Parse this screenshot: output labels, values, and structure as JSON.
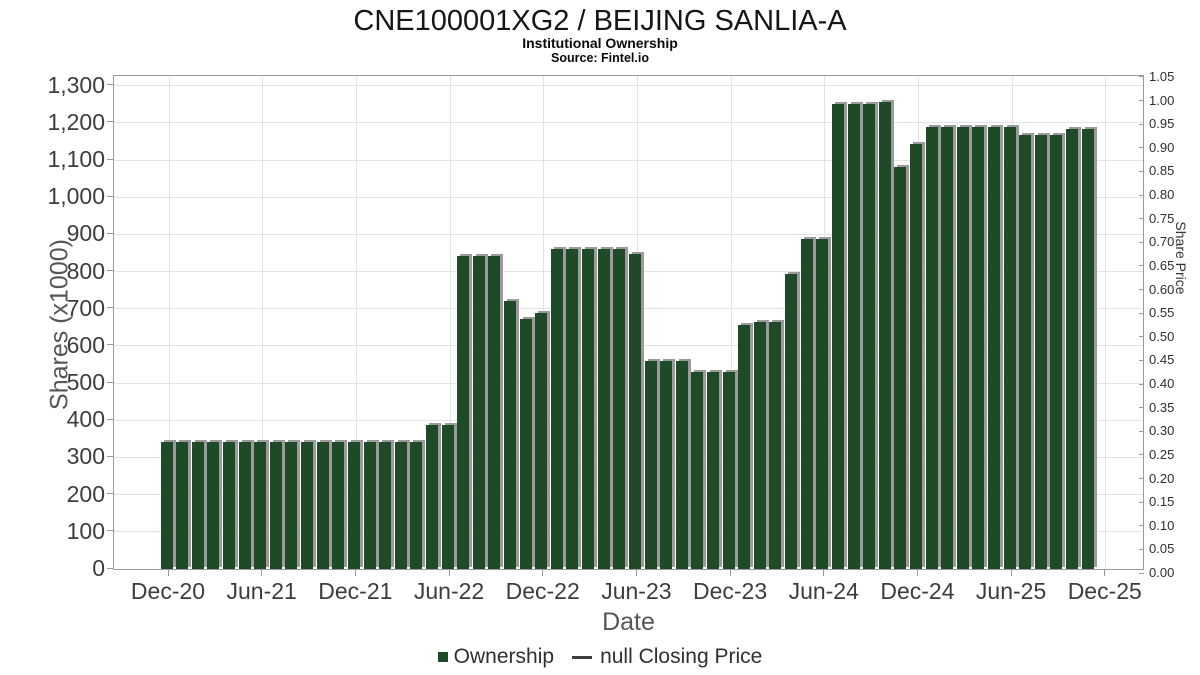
{
  "title": "CNE100001XG2 / BEIJING SANLIA-A",
  "subtitle": "Institutional Ownership",
  "source": "Source: Fintel.io",
  "legend": {
    "ownership_label": "Ownership",
    "price_label": "null Closing Price"
  },
  "colors": {
    "bar": "#1e4a28",
    "bar_shadow": "#9b9b9b",
    "grid": "#e3e3e3",
    "spine": "#9a9a9a",
    "tick_text": "#3d3d3d"
  },
  "chart_data": {
    "type": "bar",
    "title": "CNE100001XG2 / BEIJING SANLIA-A",
    "subtitle": "Institutional Ownership",
    "source": "Source: Fintel.io",
    "xlabel": "Date",
    "ylabel_left": "Shares (x1000)",
    "ylabel_right": "Share Price",
    "grid": true,
    "legend_position": "bottom",
    "y_left_axis": {
      "min": 0,
      "max": 1326,
      "tick_interval": 100,
      "tick_labels": [
        "0",
        "100",
        "200",
        "300",
        "400",
        "500",
        "600",
        "700",
        "800",
        "900",
        "1,000",
        "1,100",
        "1,200",
        "1,300"
      ]
    },
    "y_right_axis": {
      "min": 0.0,
      "max": 1.05,
      "tick_interval": 0.05,
      "tick_labels": [
        "0.00",
        "0.05",
        "0.10",
        "0.15",
        "0.20",
        "0.25",
        "0.30",
        "0.35",
        "0.40",
        "0.45",
        "0.50",
        "0.55",
        "0.60",
        "0.65",
        "0.70",
        "0.75",
        "0.80",
        "0.85",
        "0.90",
        "0.95",
        "1.00",
        "1.05"
      ]
    },
    "x_tick_labels": [
      "Dec-20",
      "Jun-21",
      "Dec-21",
      "Jun-22",
      "Dec-22",
      "Jun-23",
      "Dec-23",
      "Jun-24",
      "Dec-24",
      "Jun-25",
      "Dec-25"
    ],
    "categories": [
      "Dec-20",
      "Jan-21",
      "Feb-21",
      "Mar-21",
      "Apr-21",
      "May-21",
      "Jun-21",
      "Jul-21",
      "Aug-21",
      "Sep-21",
      "Oct-21",
      "Nov-21",
      "Dec-21",
      "Jan-22",
      "Feb-22",
      "Mar-22",
      "Apr-22",
      "May-22",
      "Jun-22",
      "Jul-22",
      "Aug-22",
      "Sep-22",
      "Oct-22",
      "Nov-22",
      "Dec-22",
      "Jan-23",
      "Feb-23",
      "Mar-23",
      "Apr-23",
      "May-23",
      "Jun-23",
      "Jul-23",
      "Aug-23",
      "Sep-23",
      "Oct-23",
      "Nov-23",
      "Dec-23",
      "Jan-24",
      "Feb-24",
      "Mar-24",
      "Apr-24",
      "May-24",
      "Jun-24",
      "Jul-24",
      "Aug-24",
      "Sep-24",
      "Oct-24",
      "Nov-24",
      "Dec-24",
      "Jan-25",
      "Feb-25",
      "Mar-25",
      "Apr-25",
      "May-25",
      "Jun-25",
      "Jul-25",
      "Aug-25",
      "Sep-25",
      "Oct-25",
      "Nov-25"
    ],
    "series": [
      {
        "name": "Ownership",
        "type": "bar",
        "values": [
          342,
          342,
          342,
          342,
          342,
          342,
          342,
          342,
          342,
          342,
          342,
          342,
          342,
          342,
          342,
          342,
          342,
          386,
          386,
          842,
          842,
          842,
          720,
          672,
          688,
          861,
          861,
          861,
          861,
          861,
          847,
          559,
          559,
          559,
          529,
          529,
          529,
          657,
          663,
          663,
          793,
          888,
          888,
          1250,
          1250,
          1250,
          1257,
          1082,
          1143,
          1188,
          1188,
          1188,
          1188,
          1188,
          1188,
          1167,
          1167,
          1167,
          1183,
          1183
        ]
      },
      {
        "name": "null Closing Price",
        "type": "line",
        "values": []
      }
    ]
  }
}
